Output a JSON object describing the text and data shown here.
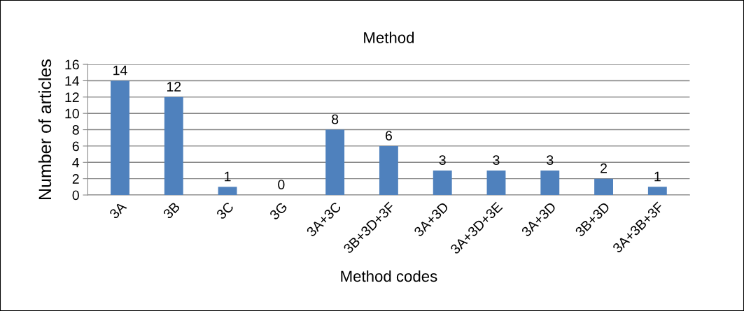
{
  "chart_data": {
    "type": "bar",
    "title": "Method",
    "xlabel": "Method codes",
    "ylabel": "Number of articles",
    "categories": [
      "3A",
      "3B",
      "3C",
      "3G",
      "3A+3C",
      "3B+3D+3F",
      "3A+3D",
      "3A+3D+3E",
      "3A+3D",
      "3B+3D",
      "3A+3B+3F"
    ],
    "values": [
      14,
      12,
      1,
      0,
      8,
      6,
      3,
      3,
      3,
      2,
      1
    ],
    "color": "#4f81bd",
    "ylim": [
      0,
      16
    ],
    "yticks": [
      0,
      2,
      4,
      6,
      8,
      10,
      12,
      14,
      16
    ],
    "grid": "y",
    "data_labels": true
  }
}
